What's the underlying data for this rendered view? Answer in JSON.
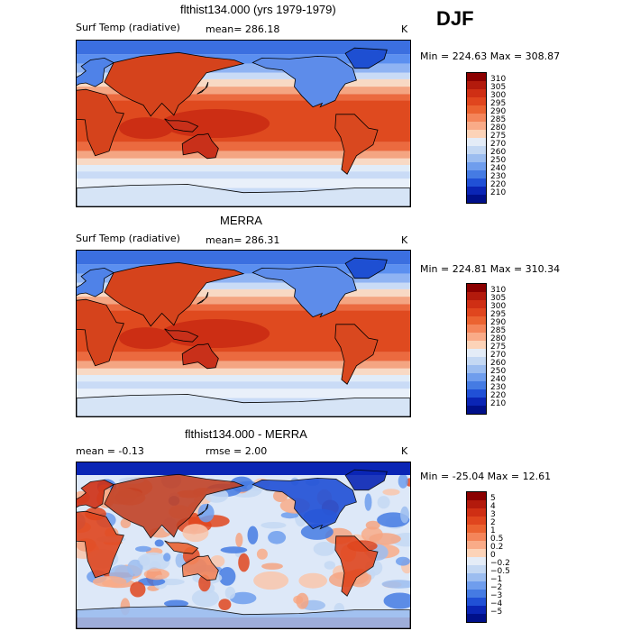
{
  "season": "DJF",
  "panels": [
    {
      "title": "flthist134.000 (yrs 1979-1979)",
      "left_label": "Surf Temp (radiative)",
      "mean_text": "mean= 286.18",
      "rmse_text": "",
      "units": "K",
      "minmax": "Min = 224.63 Max = 308.87",
      "colorbar": {
        "labels": [
          "310",
          "305",
          "300",
          "295",
          "290",
          "285",
          "280",
          "275",
          "270",
          "260",
          "250",
          "240",
          "230",
          "220",
          "210"
        ],
        "colors": [
          "#8b0000",
          "#b31a0c",
          "#cf2f14",
          "#e0461e",
          "#eb6331",
          "#f4855a",
          "#f9ab88",
          "#fcd3b8",
          "#e4ecf7",
          "#c4d8f3",
          "#9cbdf0",
          "#6f9ded",
          "#457be3",
          "#2050d6",
          "#0a25b5",
          "#00108a"
        ]
      },
      "kind": "abs"
    },
    {
      "title": "MERRA",
      "left_label": "Surf Temp (radiative)",
      "mean_text": "mean= 286.31",
      "rmse_text": "",
      "units": "K",
      "minmax": "Min = 224.81 Max = 310.34",
      "colorbar": {
        "labels": [
          "310",
          "305",
          "300",
          "295",
          "290",
          "285",
          "280",
          "275",
          "270",
          "260",
          "250",
          "240",
          "230",
          "220",
          "210"
        ],
        "colors": [
          "#8b0000",
          "#b31a0c",
          "#cf2f14",
          "#e0461e",
          "#eb6331",
          "#f4855a",
          "#f9ab88",
          "#fcd3b8",
          "#e4ecf7",
          "#c4d8f3",
          "#9cbdf0",
          "#6f9ded",
          "#457be3",
          "#2050d6",
          "#0a25b5",
          "#00108a"
        ]
      },
      "kind": "abs"
    },
    {
      "title": "flthist134.000 - MERRA",
      "left_label": "mean =   -0.13",
      "mean_text": "",
      "rmse_text": "rmse =    2.00",
      "units": "K",
      "minmax": "Min = -25.04 Max =   12.61",
      "colorbar": {
        "labels": [
          "5",
          "4",
          "3",
          "2",
          "1",
          "0.5",
          "0.2",
          "0",
          "−0.2",
          "−0.5",
          "−1",
          "−2",
          "−3",
          "−4",
          "−5"
        ],
        "colors": [
          "#8b0000",
          "#b31a0c",
          "#cf2f14",
          "#e0461e",
          "#eb6331",
          "#f4855a",
          "#f9ab88",
          "#fcd3b8",
          "#e4ecf7",
          "#c4d8f3",
          "#9cbdf0",
          "#6f9ded",
          "#457be3",
          "#2050d6",
          "#0a25b5",
          "#00108a"
        ]
      },
      "kind": "diff"
    }
  ]
}
